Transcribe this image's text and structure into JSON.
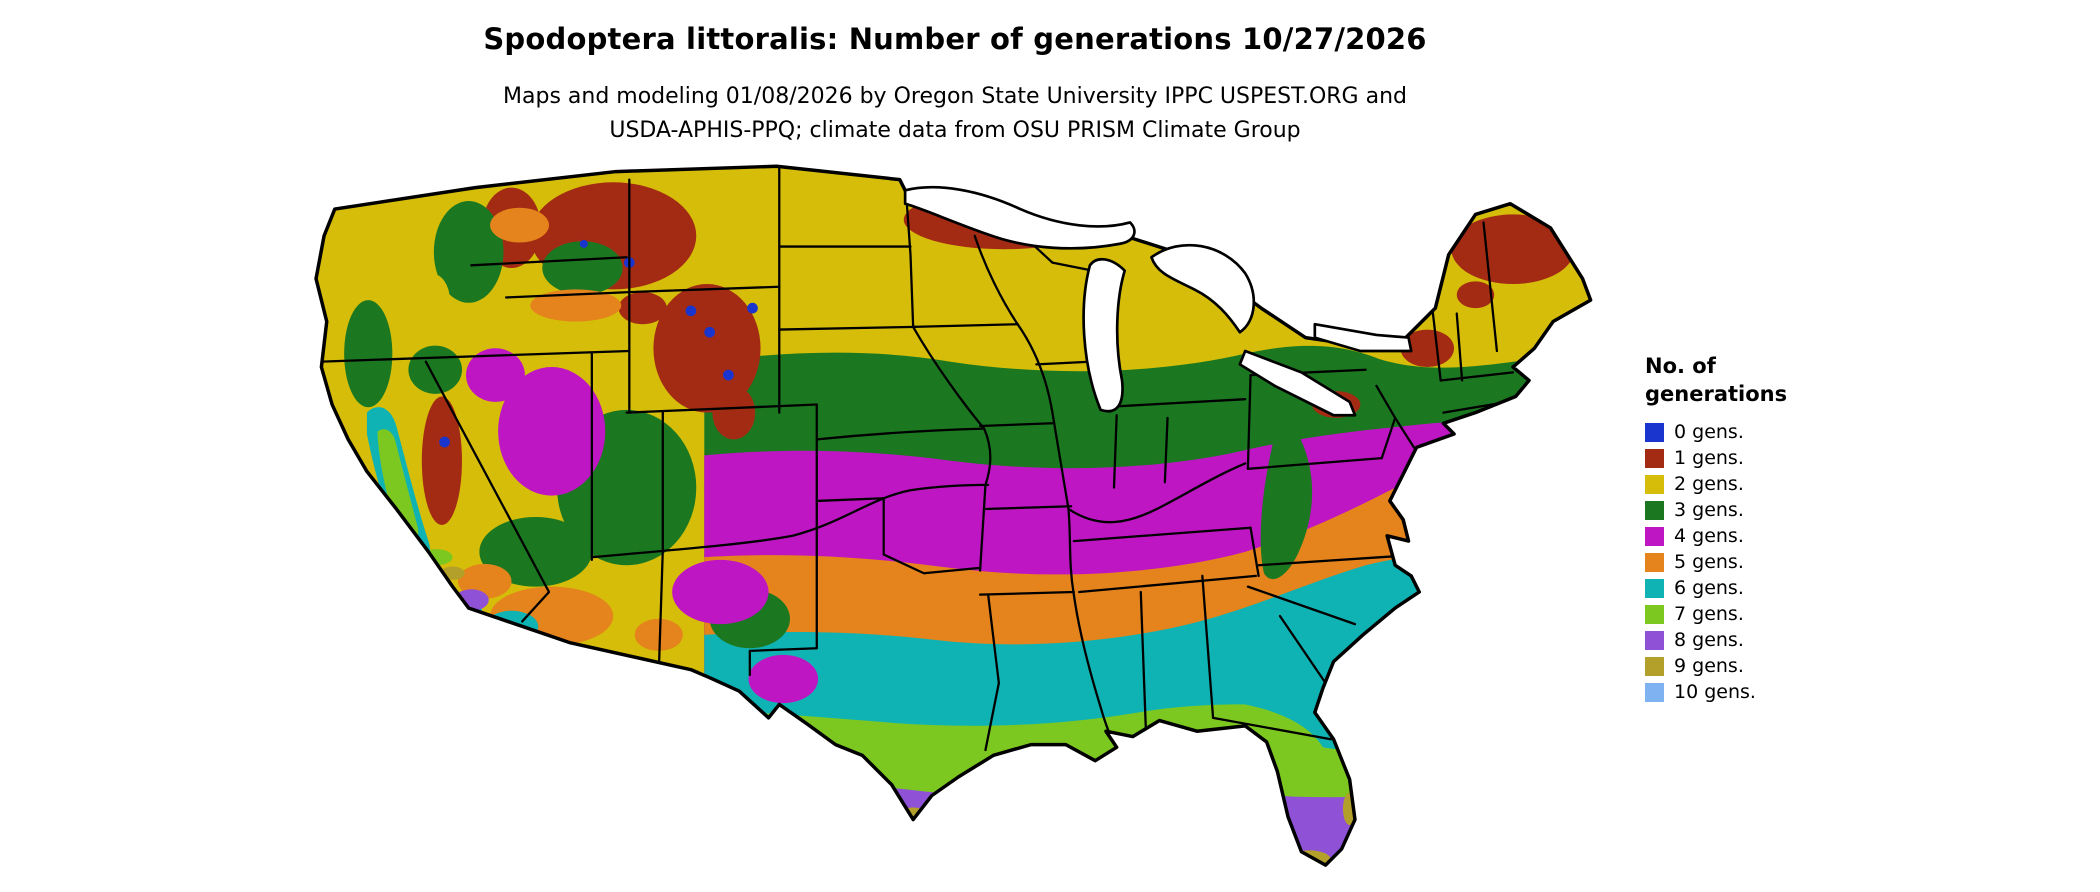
{
  "title": "Spodoptera littoralis: Number of generations 10/27/2026",
  "subtitle": {
    "line1": "Maps and modeling 01/08/2026 by Oregon State University IPPC USPEST.ORG and",
    "line2": "USDA-APHIS-PPQ; climate data from OSU PRISM Climate Group"
  },
  "legend": {
    "title_line1": "No. of",
    "title_line2": "generations",
    "items": [
      {
        "label": "0 gens.",
        "color": "#1a35cd"
      },
      {
        "label": "1 gens.",
        "color": "#a32b13"
      },
      {
        "label": "2 gens.",
        "color": "#d6bd09"
      },
      {
        "label": "3 gens.",
        "color": "#1b7821"
      },
      {
        "label": "4 gens.",
        "color": "#bf16c4"
      },
      {
        "label": "5 gens.",
        "color": "#e5831c"
      },
      {
        "label": "6 gens.",
        "color": "#10b3b3"
      },
      {
        "label": "7 gens.",
        "color": "#7cc821"
      },
      {
        "label": "8 gens.",
        "color": "#8f52d6"
      },
      {
        "label": "9 gens.",
        "color": "#b3a02b"
      },
      {
        "label": "10 gens.",
        "color": "#7fb2f0"
      }
    ]
  }
}
